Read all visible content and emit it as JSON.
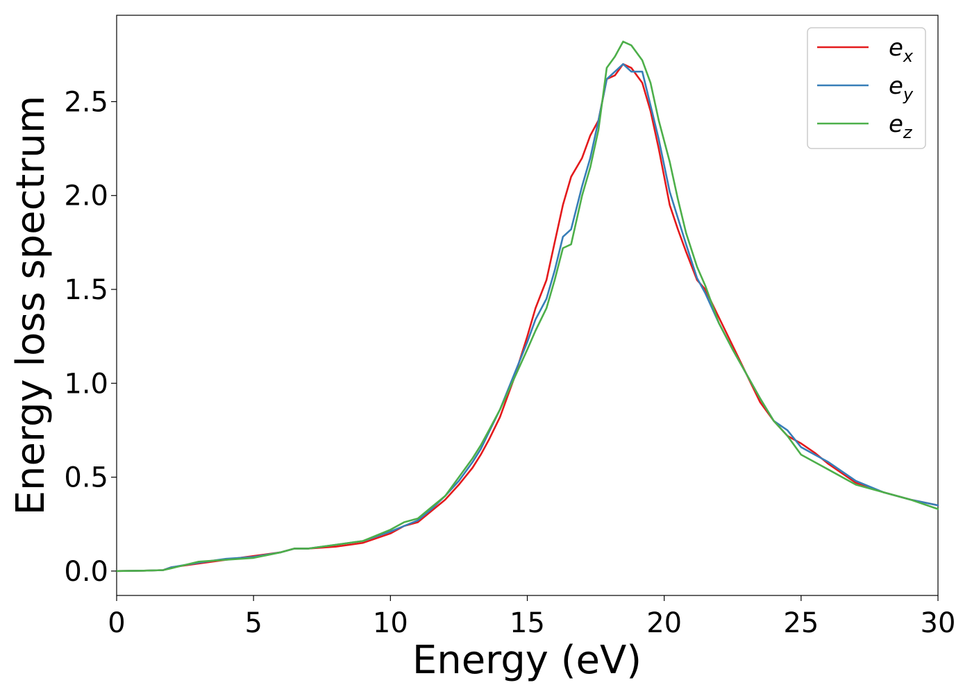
{
  "chart_data": {
    "type": "line",
    "xlabel": "Energy (eV)",
    "ylabel": "Energy loss spectrum",
    "xlim": [
      0,
      30
    ],
    "ylim": [
      -0.13,
      2.96
    ],
    "xticks": [
      0,
      5,
      10,
      15,
      20,
      25,
      30
    ],
    "xtick_labels": [
      "0",
      "5",
      "10",
      "15",
      "20",
      "25",
      "30"
    ],
    "yticks": [
      0.0,
      0.5,
      1.0,
      1.5,
      2.0,
      2.5
    ],
    "ytick_labels": [
      "0.0",
      "0.5",
      "1.0",
      "1.5",
      "2.0",
      "2.5"
    ],
    "grid": false,
    "legend_position": "top-right",
    "series": [
      {
        "name": "e_x",
        "label_base": "e",
        "label_sub": "x",
        "color": "#e41a1c",
        "x": [
          0,
          1,
          1.7,
          2,
          3,
          4,
          5,
          6,
          6.5,
          7,
          8,
          9,
          10,
          10.5,
          11,
          11.5,
          12,
          12.5,
          13,
          13.3,
          13.6,
          14,
          14.5,
          15,
          15.3,
          15.7,
          16,
          16.3,
          16.6,
          17,
          17.3,
          17.6,
          17.9,
          18.2,
          18.5,
          18.8,
          19.2,
          19.5,
          19.8,
          20.2,
          20.5,
          20.8,
          21.2,
          21.5,
          22,
          22.5,
          23,
          23.5,
          24,
          24.5,
          25,
          25.5,
          26,
          27,
          28,
          29,
          30
        ],
        "y": [
          0,
          0.002,
          0.005,
          0.02,
          0.04,
          0.06,
          0.08,
          0.1,
          0.12,
          0.12,
          0.13,
          0.15,
          0.2,
          0.24,
          0.26,
          0.32,
          0.38,
          0.46,
          0.55,
          0.62,
          0.7,
          0.82,
          1.02,
          1.25,
          1.4,
          1.55,
          1.75,
          1.95,
          2.1,
          2.2,
          2.32,
          2.4,
          2.62,
          2.64,
          2.7,
          2.68,
          2.6,
          2.45,
          2.25,
          1.95,
          1.82,
          1.7,
          1.55,
          1.5,
          1.35,
          1.2,
          1.05,
          0.9,
          0.8,
          0.72,
          0.68,
          0.63,
          0.57,
          0.47,
          0.42,
          0.38,
          0.35
        ]
      },
      {
        "name": "e_y",
        "label_base": "e",
        "label_sub": "y",
        "color": "#377eb8",
        "x": [
          0,
          1,
          1.7,
          2,
          3,
          4,
          5,
          6,
          6.5,
          7,
          8,
          9,
          10,
          10.5,
          11,
          11.5,
          12,
          12.5,
          13,
          13.3,
          13.6,
          14,
          14.5,
          15,
          15.3,
          15.7,
          16,
          16.3,
          16.6,
          17,
          17.3,
          17.6,
          17.9,
          18.2,
          18.5,
          18.8,
          19.2,
          19.5,
          19.8,
          20.2,
          20.5,
          20.8,
          21.2,
          21.5,
          22,
          22.5,
          23,
          23.5,
          24,
          24.5,
          25,
          25.5,
          26,
          27,
          28,
          29,
          30
        ],
        "y": [
          0,
          0.002,
          0.005,
          0.02,
          0.045,
          0.065,
          0.075,
          0.1,
          0.12,
          0.12,
          0.14,
          0.16,
          0.21,
          0.24,
          0.27,
          0.33,
          0.4,
          0.48,
          0.58,
          0.65,
          0.74,
          0.86,
          1.04,
          1.22,
          1.34,
          1.45,
          1.6,
          1.78,
          1.82,
          2.05,
          2.2,
          2.4,
          2.62,
          2.66,
          2.7,
          2.66,
          2.66,
          2.48,
          2.3,
          2.02,
          1.88,
          1.74,
          1.56,
          1.48,
          1.32,
          1.18,
          1.05,
          0.92,
          0.8,
          0.75,
          0.66,
          0.62,
          0.58,
          0.48,
          0.42,
          0.38,
          0.35
        ]
      },
      {
        "name": "e_z",
        "label_base": "e",
        "label_sub": "z",
        "color": "#4daf4a",
        "x": [
          0,
          1,
          1.7,
          2,
          3,
          4,
          5,
          6,
          6.5,
          7,
          8,
          9,
          10,
          10.5,
          11,
          11.5,
          12,
          12.5,
          13,
          13.3,
          13.6,
          14,
          14.5,
          15,
          15.3,
          15.7,
          16,
          16.3,
          16.6,
          17,
          17.3,
          17.6,
          17.9,
          18.2,
          18.5,
          18.8,
          19.2,
          19.5,
          19.8,
          20.2,
          20.5,
          20.8,
          21.2,
          21.5,
          22,
          22.5,
          23,
          23.5,
          24,
          24.5,
          25,
          25.5,
          26,
          27,
          28,
          29,
          30
        ],
        "y": [
          0,
          0.002,
          0.005,
          0.015,
          0.05,
          0.06,
          0.07,
          0.1,
          0.12,
          0.12,
          0.14,
          0.16,
          0.22,
          0.26,
          0.28,
          0.34,
          0.4,
          0.5,
          0.6,
          0.67,
          0.75,
          0.86,
          1.02,
          1.18,
          1.28,
          1.4,
          1.55,
          1.72,
          1.74,
          2.0,
          2.15,
          2.35,
          2.68,
          2.74,
          2.82,
          2.8,
          2.72,
          2.6,
          2.4,
          2.18,
          1.98,
          1.8,
          1.62,
          1.52,
          1.32,
          1.18,
          1.05,
          0.92,
          0.8,
          0.72,
          0.62,
          0.58,
          0.54,
          0.46,
          0.42,
          0.38,
          0.33
        ]
      }
    ]
  }
}
